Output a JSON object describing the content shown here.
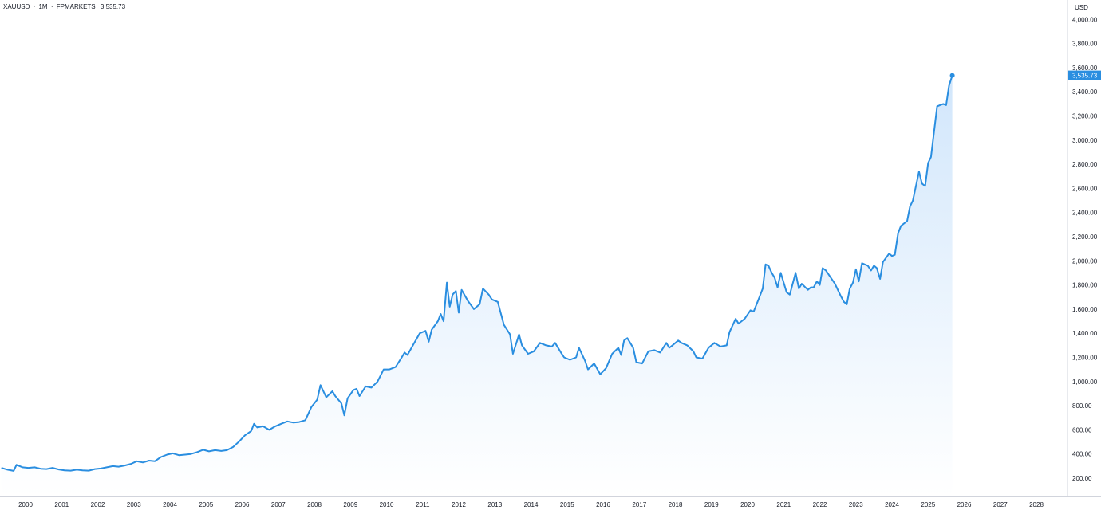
{
  "header": {
    "symbol": "XAUUSD",
    "interval": "1M",
    "exchange": "FPMARKETS",
    "separator": "·",
    "last_price": "3,535.73"
  },
  "axis": {
    "currency": "USD"
  },
  "colors": {
    "line": "#2a8ee0",
    "fill_top": "#cfe5fb",
    "fill_bottom": "#ffffff",
    "axis_line": "#d1d4dc",
    "text": "#131722",
    "price_tag": "#2a8ee0"
  },
  "chart_data": {
    "type": "area",
    "x_unit": "year",
    "y_unit": "USD",
    "ylim": [
      100,
      4100
    ],
    "xlim": [
      1999.29,
      2028.7
    ],
    "grid": false,
    "y_ticks": [
      {
        "value": 200,
        "label": "200.00"
      },
      {
        "value": 400,
        "label": "400.00"
      },
      {
        "value": 600,
        "label": "600.00"
      },
      {
        "value": 800,
        "label": "800.00"
      },
      {
        "value": 1000,
        "label": "1,000.00"
      },
      {
        "value": 1200,
        "label": "1,200.00"
      },
      {
        "value": 1400,
        "label": "1,400.00"
      },
      {
        "value": 1600,
        "label": "1,600.00"
      },
      {
        "value": 1800,
        "label": "1,800.00"
      },
      {
        "value": 2000,
        "label": "2,000.00"
      },
      {
        "value": 2200,
        "label": "2,200.00"
      },
      {
        "value": 2400,
        "label": "2,400.00"
      },
      {
        "value": 2600,
        "label": "2,600.00"
      },
      {
        "value": 2800,
        "label": "2,800.00"
      },
      {
        "value": 3000,
        "label": "3,000.00"
      },
      {
        "value": 3200,
        "label": "3,200.00"
      },
      {
        "value": 3400,
        "label": "3,400.00"
      },
      {
        "value": 3600,
        "label": "3,600.00"
      },
      {
        "value": 3800,
        "label": "3,800.00"
      },
      {
        "value": 4000,
        "label": "4,000.00"
      }
    ],
    "x_ticks": [
      {
        "value": 2000,
        "label": "2000"
      },
      {
        "value": 2001,
        "label": "2001"
      },
      {
        "value": 2002,
        "label": "2002"
      },
      {
        "value": 2003,
        "label": "2003"
      },
      {
        "value": 2004,
        "label": "2004"
      },
      {
        "value": 2005,
        "label": "2005"
      },
      {
        "value": 2006,
        "label": "2006"
      },
      {
        "value": 2007,
        "label": "2007"
      },
      {
        "value": 2008,
        "label": "2008"
      },
      {
        "value": 2009,
        "label": "2009"
      },
      {
        "value": 2010,
        "label": "2010"
      },
      {
        "value": 2011,
        "label": "2011"
      },
      {
        "value": 2012,
        "label": "2012"
      },
      {
        "value": 2013,
        "label": "2013"
      },
      {
        "value": 2014,
        "label": "2014"
      },
      {
        "value": 2015,
        "label": "2015"
      },
      {
        "value": 2016,
        "label": "2016"
      },
      {
        "value": 2017,
        "label": "2017"
      },
      {
        "value": 2018,
        "label": "2018"
      },
      {
        "value": 2019,
        "label": "2019"
      },
      {
        "value": 2020,
        "label": "2020"
      },
      {
        "value": 2021,
        "label": "2021"
      },
      {
        "value": 2022,
        "label": "2022"
      },
      {
        "value": 2023,
        "label": "2023"
      },
      {
        "value": 2024,
        "label": "2024"
      },
      {
        "value": 2025,
        "label": "2025"
      },
      {
        "value": 2026,
        "label": "2026"
      },
      {
        "value": 2027,
        "label": "2027"
      },
      {
        "value": 2028,
        "label": "2028"
      }
    ],
    "last_value": 3535.73,
    "series": [
      {
        "points": [
          [
            1999.33,
            285
          ],
          [
            1999.5,
            270
          ],
          [
            1999.67,
            260
          ],
          [
            1999.75,
            310
          ],
          [
            1999.92,
            290
          ],
          [
            2000.08,
            285
          ],
          [
            2000.25,
            290
          ],
          [
            2000.42,
            278
          ],
          [
            2000.58,
            275
          ],
          [
            2000.75,
            285
          ],
          [
            2000.92,
            272
          ],
          [
            2001.08,
            265
          ],
          [
            2001.25,
            262
          ],
          [
            2001.42,
            270
          ],
          [
            2001.58,
            265
          ],
          [
            2001.75,
            262
          ],
          [
            2001.92,
            275
          ],
          [
            2002.08,
            280
          ],
          [
            2002.25,
            290
          ],
          [
            2002.42,
            300
          ],
          [
            2002.58,
            295
          ],
          [
            2002.75,
            305
          ],
          [
            2002.92,
            318
          ],
          [
            2003.08,
            340
          ],
          [
            2003.25,
            330
          ],
          [
            2003.42,
            345
          ],
          [
            2003.58,
            340
          ],
          [
            2003.75,
            375
          ],
          [
            2003.92,
            395
          ],
          [
            2004.08,
            405
          ],
          [
            2004.25,
            390
          ],
          [
            2004.42,
            395
          ],
          [
            2004.58,
            400
          ],
          [
            2004.75,
            415
          ],
          [
            2004.92,
            435
          ],
          [
            2005.08,
            422
          ],
          [
            2005.25,
            432
          ],
          [
            2005.42,
            425
          ],
          [
            2005.58,
            432
          ],
          [
            2005.75,
            458
          ],
          [
            2005.92,
            505
          ],
          [
            2006.08,
            555
          ],
          [
            2006.25,
            590
          ],
          [
            2006.33,
            650
          ],
          [
            2006.42,
            620
          ],
          [
            2006.58,
            630
          ],
          [
            2006.75,
            600
          ],
          [
            2006.92,
            630
          ],
          [
            2007.08,
            650
          ],
          [
            2007.25,
            670
          ],
          [
            2007.42,
            660
          ],
          [
            2007.58,
            665
          ],
          [
            2007.75,
            680
          ],
          [
            2007.92,
            790
          ],
          [
            2008.08,
            850
          ],
          [
            2008.17,
            970
          ],
          [
            2008.33,
            870
          ],
          [
            2008.5,
            920
          ],
          [
            2008.58,
            880
          ],
          [
            2008.75,
            820
          ],
          [
            2008.83,
            720
          ],
          [
            2008.92,
            860
          ],
          [
            2009.08,
            930
          ],
          [
            2009.17,
            940
          ],
          [
            2009.25,
            880
          ],
          [
            2009.42,
            960
          ],
          [
            2009.58,
            950
          ],
          [
            2009.75,
            1000
          ],
          [
            2009.92,
            1100
          ],
          [
            2010.08,
            1100
          ],
          [
            2010.25,
            1120
          ],
          [
            2010.42,
            1200
          ],
          [
            2010.5,
            1240
          ],
          [
            2010.58,
            1220
          ],
          [
            2010.75,
            1310
          ],
          [
            2010.92,
            1400
          ],
          [
            2011.08,
            1420
          ],
          [
            2011.17,
            1330
          ],
          [
            2011.25,
            1430
          ],
          [
            2011.42,
            1500
          ],
          [
            2011.5,
            1560
          ],
          [
            2011.58,
            1500
          ],
          [
            2011.67,
            1820
          ],
          [
            2011.75,
            1620
          ],
          [
            2011.83,
            1720
          ],
          [
            2011.92,
            1750
          ],
          [
            2012.0,
            1570
          ],
          [
            2012.08,
            1760
          ],
          [
            2012.25,
            1670
          ],
          [
            2012.42,
            1600
          ],
          [
            2012.58,
            1640
          ],
          [
            2012.67,
            1770
          ],
          [
            2012.83,
            1720
          ],
          [
            2012.92,
            1680
          ],
          [
            2013.08,
            1660
          ],
          [
            2013.25,
            1470
          ],
          [
            2013.42,
            1390
          ],
          [
            2013.5,
            1230
          ],
          [
            2013.67,
            1390
          ],
          [
            2013.75,
            1300
          ],
          [
            2013.92,
            1230
          ],
          [
            2014.08,
            1250
          ],
          [
            2014.25,
            1320
          ],
          [
            2014.42,
            1300
          ],
          [
            2014.58,
            1290
          ],
          [
            2014.67,
            1320
          ],
          [
            2014.83,
            1240
          ],
          [
            2014.92,
            1200
          ],
          [
            2015.08,
            1180
          ],
          [
            2015.25,
            1200
          ],
          [
            2015.33,
            1280
          ],
          [
            2015.5,
            1170
          ],
          [
            2015.58,
            1100
          ],
          [
            2015.75,
            1150
          ],
          [
            2015.92,
            1060
          ],
          [
            2016.08,
            1110
          ],
          [
            2016.25,
            1230
          ],
          [
            2016.42,
            1280
          ],
          [
            2016.5,
            1220
          ],
          [
            2016.58,
            1340
          ],
          [
            2016.67,
            1360
          ],
          [
            2016.83,
            1280
          ],
          [
            2016.92,
            1160
          ],
          [
            2017.08,
            1150
          ],
          [
            2017.25,
            1250
          ],
          [
            2017.42,
            1260
          ],
          [
            2017.58,
            1240
          ],
          [
            2017.75,
            1320
          ],
          [
            2017.83,
            1280
          ],
          [
            2017.92,
            1300
          ],
          [
            2018.08,
            1340
          ],
          [
            2018.17,
            1320
          ],
          [
            2018.33,
            1300
          ],
          [
            2018.5,
            1250
          ],
          [
            2018.58,
            1200
          ],
          [
            2018.75,
            1190
          ],
          [
            2018.92,
            1280
          ],
          [
            2019.08,
            1320
          ],
          [
            2019.25,
            1290
          ],
          [
            2019.42,
            1300
          ],
          [
            2019.5,
            1410
          ],
          [
            2019.67,
            1520
          ],
          [
            2019.75,
            1480
          ],
          [
            2019.92,
            1520
          ],
          [
            2020.08,
            1590
          ],
          [
            2020.17,
            1580
          ],
          [
            2020.33,
            1700
          ],
          [
            2020.42,
            1770
          ],
          [
            2020.5,
            1970
          ],
          [
            2020.58,
            1960
          ],
          [
            2020.67,
            1900
          ],
          [
            2020.75,
            1860
          ],
          [
            2020.83,
            1780
          ],
          [
            2020.92,
            1900
          ],
          [
            2021.08,
            1740
          ],
          [
            2021.17,
            1720
          ],
          [
            2021.33,
            1900
          ],
          [
            2021.42,
            1770
          ],
          [
            2021.5,
            1810
          ],
          [
            2021.67,
            1760
          ],
          [
            2021.75,
            1780
          ],
          [
            2021.83,
            1780
          ],
          [
            2021.92,
            1830
          ],
          [
            2022.0,
            1800
          ],
          [
            2022.08,
            1940
          ],
          [
            2022.17,
            1920
          ],
          [
            2022.33,
            1850
          ],
          [
            2022.42,
            1810
          ],
          [
            2022.58,
            1710
          ],
          [
            2022.67,
            1660
          ],
          [
            2022.75,
            1640
          ],
          [
            2022.83,
            1770
          ],
          [
            2022.92,
            1820
          ],
          [
            2023.0,
            1930
          ],
          [
            2023.08,
            1830
          ],
          [
            2023.17,
            1980
          ],
          [
            2023.33,
            1960
          ],
          [
            2023.42,
            1920
          ],
          [
            2023.5,
            1960
          ],
          [
            2023.58,
            1940
          ],
          [
            2023.67,
            1850
          ],
          [
            2023.75,
            1990
          ],
          [
            2023.92,
            2060
          ],
          [
            2024.0,
            2040
          ],
          [
            2024.08,
            2050
          ],
          [
            2024.17,
            2230
          ],
          [
            2024.25,
            2290
          ],
          [
            2024.42,
            2330
          ],
          [
            2024.5,
            2450
          ],
          [
            2024.58,
            2500
          ],
          [
            2024.75,
            2740
          ],
          [
            2024.83,
            2640
          ],
          [
            2024.92,
            2620
          ],
          [
            2025.0,
            2810
          ],
          [
            2025.08,
            2860
          ],
          [
            2025.25,
            3280
          ],
          [
            2025.33,
            3290
          ],
          [
            2025.42,
            3300
          ],
          [
            2025.5,
            3290
          ],
          [
            2025.58,
            3450
          ],
          [
            2025.67,
            3535.73
          ]
        ]
      }
    ]
  }
}
